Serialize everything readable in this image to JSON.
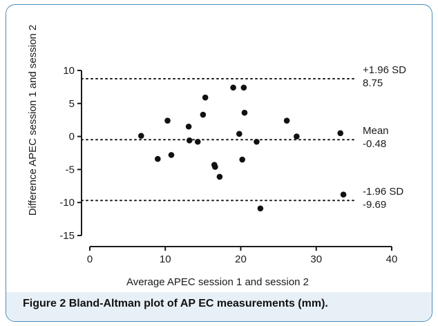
{
  "caption": {
    "label": "Figure 2",
    "text": "Bland-Altman plot of AP EC measurements (mm)."
  },
  "chart_data": {
    "type": "scatter",
    "title": "",
    "xlabel": "Average APEC session 1 and session 2",
    "ylabel": "Difference APEC session 1 and session 2",
    "xlim": [
      0,
      40
    ],
    "ylim": [
      -15,
      10
    ],
    "x_ticks": [
      "0",
      "10",
      "20",
      "30",
      "40"
    ],
    "y_ticks": [
      "10",
      "5",
      "0",
      "-5",
      "-10",
      "-15"
    ],
    "x_tick_values": [
      0,
      10,
      20,
      30,
      40
    ],
    "y_tick_values": [
      10,
      5,
      0,
      -5,
      -10,
      -15
    ],
    "grid": false,
    "reference_lines": [
      {
        "value": 8.75,
        "label": "+1.96 SD",
        "value_label": "8.75"
      },
      {
        "value": -0.48,
        "label": "Mean",
        "value_label": "-0.48"
      },
      {
        "value": -9.69,
        "label": "-1.96 SD",
        "value_label": "-9.69"
      }
    ],
    "points": [
      {
        "x": 6.8,
        "y": 0.1
      },
      {
        "x": 9.0,
        "y": -3.4
      },
      {
        "x": 10.3,
        "y": 2.4
      },
      {
        "x": 10.8,
        "y": -2.8
      },
      {
        "x": 13.1,
        "y": 1.5
      },
      {
        "x": 13.2,
        "y": -0.6
      },
      {
        "x": 14.3,
        "y": -0.8
      },
      {
        "x": 15.0,
        "y": 3.3
      },
      {
        "x": 15.3,
        "y": 5.9
      },
      {
        "x": 16.5,
        "y": -4.3
      },
      {
        "x": 16.6,
        "y": -4.6
      },
      {
        "x": 17.2,
        "y": -6.1
      },
      {
        "x": 19.0,
        "y": 7.4
      },
      {
        "x": 19.8,
        "y": 0.4
      },
      {
        "x": 20.2,
        "y": -3.5
      },
      {
        "x": 20.4,
        "y": 7.4
      },
      {
        "x": 20.5,
        "y": 3.6
      },
      {
        "x": 22.1,
        "y": -0.8
      },
      {
        "x": 22.6,
        "y": -10.9
      },
      {
        "x": 26.1,
        "y": 2.4
      },
      {
        "x": 27.4,
        "y": 0.0
      },
      {
        "x": 33.2,
        "y": 0.5
      },
      {
        "x": 33.6,
        "y": -8.8
      }
    ],
    "colors": {
      "points": "#111111",
      "axes": "#1a1a1a",
      "reference_lines": "#1a1a1a",
      "frame": "#4a8bb8",
      "caption_band": "#e8f0f7"
    }
  }
}
